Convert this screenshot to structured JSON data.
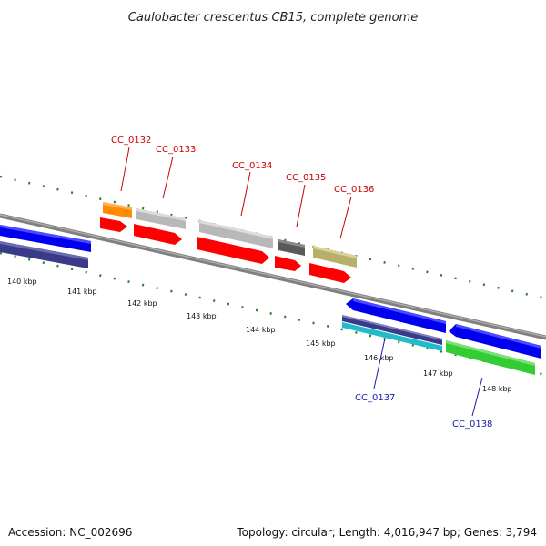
{
  "title": "Caulobacter crescentus CB15, complete genome",
  "footer": {
    "accession": "Accession: NC_002696",
    "summary": "Topology: circular; Length: 4,016,947 bp; Genes: 3,794"
  },
  "colors": {
    "backbone": "#808080",
    "ticks": "#2e7d2e",
    "label_top": "#cc0000",
    "label_bottom": "#1a1aaa",
    "cds": "#ff0000",
    "blue_gene": "#0000ee",
    "navy_gene": "#3a3a8a",
    "orange_gene": "#ff8c00",
    "gray_gene": "#b8b8b8",
    "darkgray_gene": "#5a5a5a",
    "khaki_gene": "#b8b06a",
    "cyan_gene": "#22bbcc",
    "green_gene": "#33cc33"
  },
  "ticks": [
    "140 kbp",
    "141 kbp",
    "142 kbp",
    "143 kbp",
    "144 kbp",
    "145 kbp",
    "146 kbp",
    "147 kbp",
    "148 kbp"
  ],
  "genes_top": [
    "CC_0132",
    "CC_0133",
    "CC_0134",
    "CC_0135",
    "CC_0136"
  ],
  "genes_bottom": [
    "CC_0137",
    "CC_0138"
  ]
}
